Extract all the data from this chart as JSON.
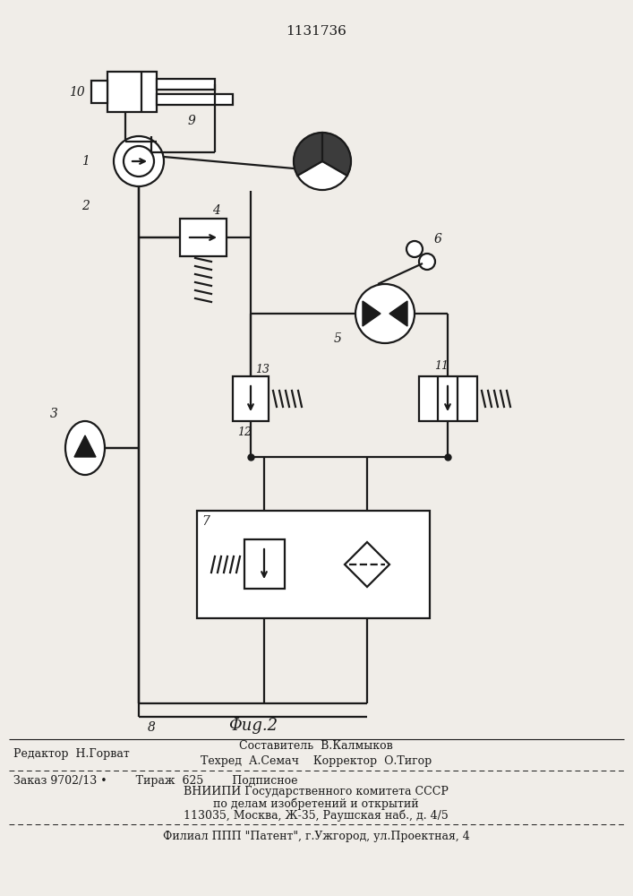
{
  "title_number": "1131736",
  "fig_label": "Φug.2",
  "background_color": "#f0ede8",
  "line_color": "#1a1a1a",
  "editor_line": "Редактор  Н.Горват",
  "compiler_line": "Составитель  В.Калмыков",
  "techred_line": "Техред  А.Семач    Корректор  О.Тигор",
  "order_line": "Заказ 9702/13 •        Тираж  625        Подписное",
  "vnipi_line1": "ВНИИПИ Государственного комитета СССР",
  "vnipi_line2": "по делам изобретений и открытий",
  "vnipi_line3": "113035, Москва, Ж-35, Раушская наб., д. 4/5",
  "filial_line": "Филиал ППП \"Патент\", г.Ужгород, ул.Проектная, 4"
}
